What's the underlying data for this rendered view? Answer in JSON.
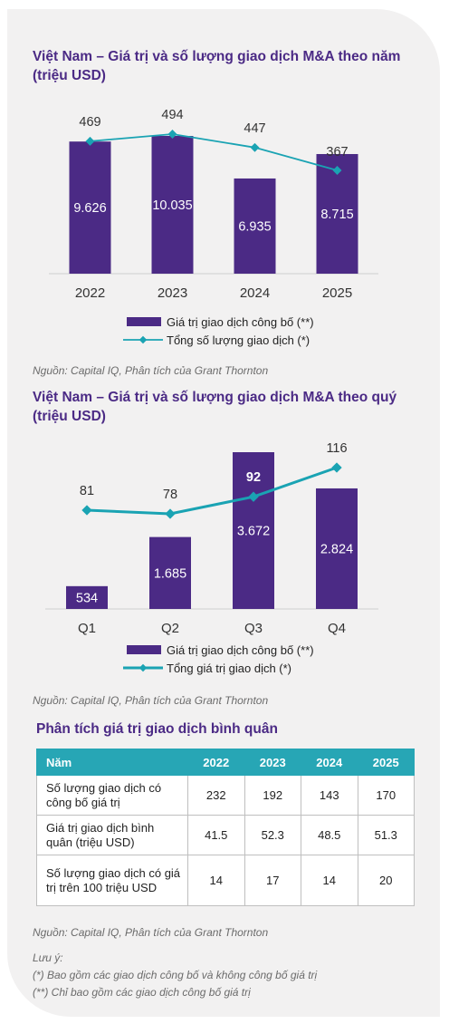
{
  "chart_data": [
    {
      "type": "bar",
      "title": "Việt Nam – Giá trị và số lượng giao dịch M&A theo năm (triệu USD)",
      "categories": [
        "2022",
        "2023",
        "2024",
        "2025"
      ],
      "series": [
        {
          "name": "Giá trị giao dịch công bố (**)",
          "type": "bar",
          "values": [
            9626,
            10035,
            6935,
            8715
          ],
          "labels": [
            "9.626",
            "10.035",
            "6.935",
            "8.715"
          ]
        },
        {
          "name": "Tổng số lượng giao dịch (*)",
          "type": "line",
          "values": [
            469,
            494,
            447,
            367
          ],
          "labels": [
            "469",
            "494",
            "447",
            "367"
          ]
        }
      ],
      "source": "Nguồn: Capital IQ, Phân tích của Grant Thornton"
    },
    {
      "type": "bar",
      "title": "Việt Nam – Giá trị và số lượng giao dịch M&A theo quý (triệu USD)",
      "categories": [
        "Q1",
        "Q2",
        "Q3",
        "Q4"
      ],
      "series": [
        {
          "name": "Giá trị giao dịch công bố (**)",
          "type": "bar",
          "values": [
            534,
            1685,
            3672,
            2824
          ],
          "labels": [
            "534",
            "1.685",
            "3.672",
            "2.824"
          ]
        },
        {
          "name": "Tổng giá trị giao dịch (*)",
          "type": "line",
          "values": [
            81,
            78,
            92,
            116
          ],
          "labels": [
            "81",
            "78",
            "92",
            "116"
          ]
        }
      ],
      "source": "Nguồn: Capital IQ, Phân tích của Grant Thornton"
    }
  ],
  "colors": {
    "bar": "#4b2a85",
    "line": "#1aa3b3",
    "header": "#27a6b5",
    "title": "#4b2a85"
  },
  "table": {
    "title": "Phân tích giá trị giao dịch bình quân",
    "headers": [
      "Năm",
      "2022",
      "2023",
      "2024",
      "2025"
    ],
    "rows": [
      [
        "Số lượng giao dịch có công bố giá trị",
        "232",
        "192",
        "143",
        "170"
      ],
      [
        "Giá trị giao dịch bình quân (triệu USD)",
        "41.5",
        "52.3",
        "48.5",
        "51.3"
      ],
      [
        "Số lượng giao dịch có giá trị trên 100 triệu USD",
        "14",
        "17",
        "14",
        "20"
      ]
    ],
    "source": "Nguồn: Capital IQ, Phân tích của Grant Thornton"
  },
  "notes": {
    "heading": "Lưu ý:",
    "lines": [
      "(*) Bao gồm các giao dịch công bố và không công bố giá trị",
      "(**) Chỉ bao gồm các giao dịch công bố giá trị"
    ]
  }
}
